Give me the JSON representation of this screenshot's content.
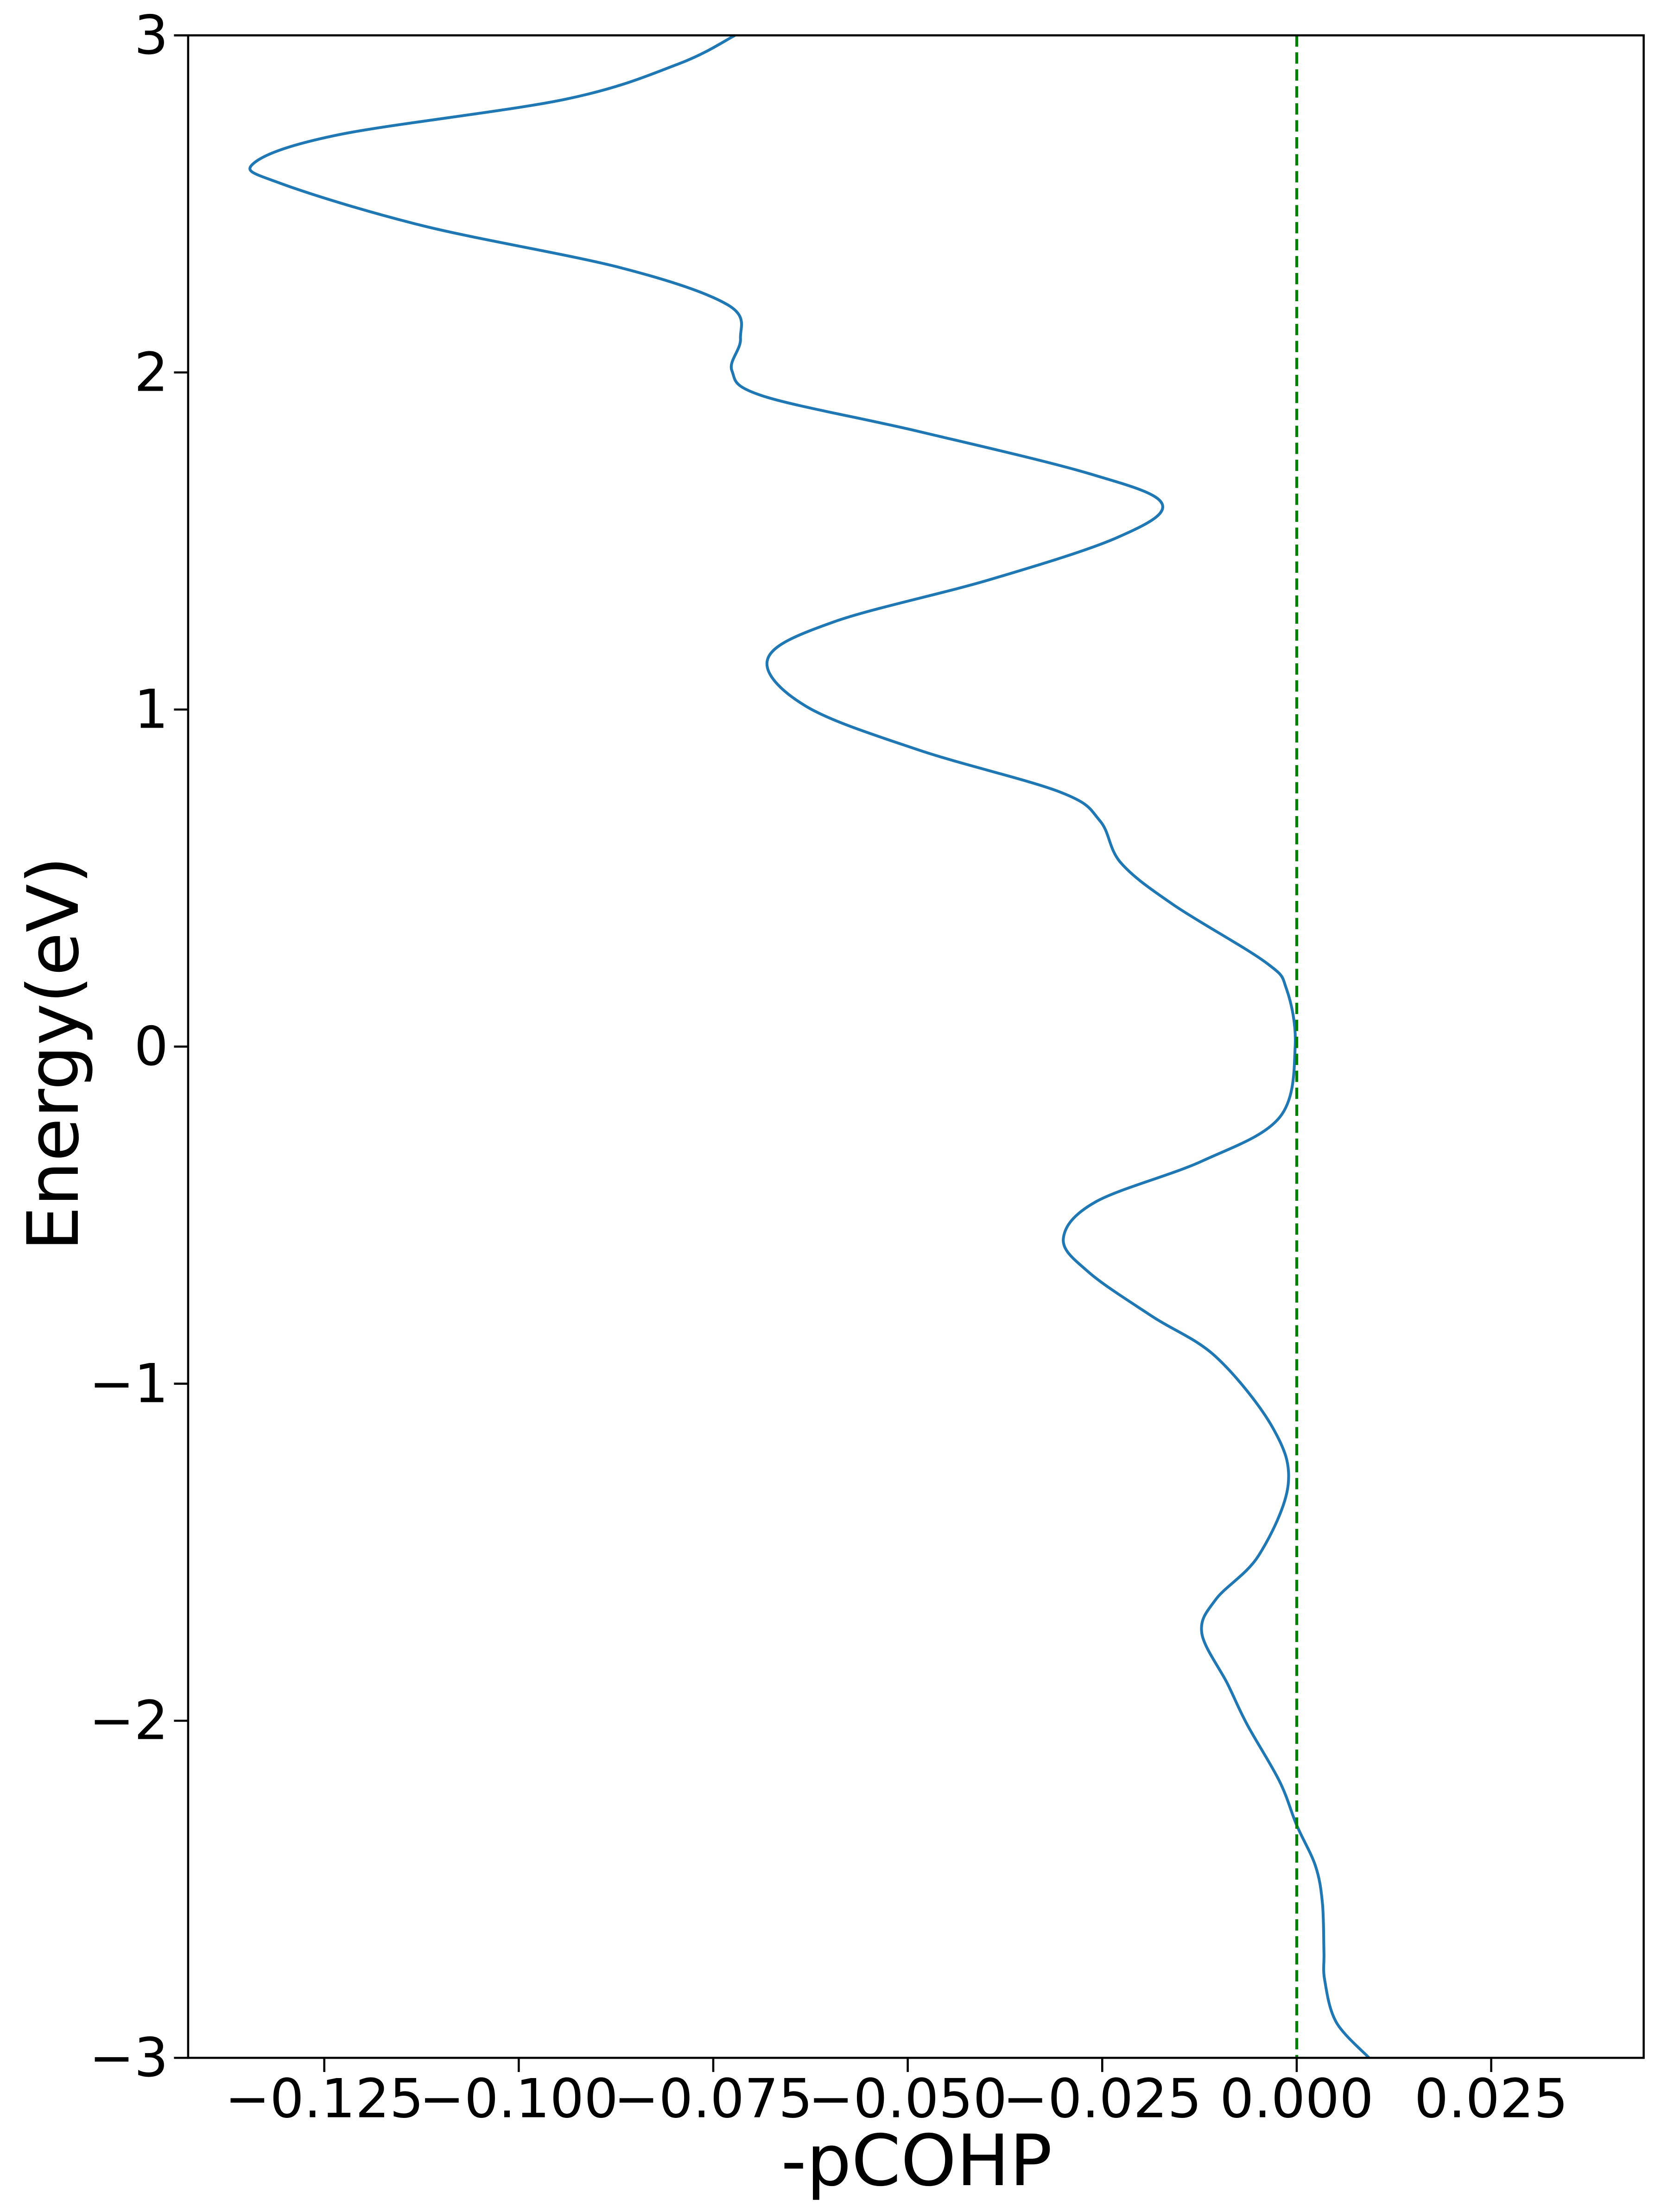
{
  "chart_data": {
    "type": "line",
    "x_label": "-pCOHP",
    "y_label": "Energy(eV)",
    "color": "#1f77b4",
    "y": [
      -3,
      -2.895,
      -2.77,
      -2.685,
      -2.54,
      -2.43,
      -2.31,
      -2.18,
      -2.01,
      -1.89,
      -1.74,
      -1.64,
      -1.51,
      -1.3,
      -1.13,
      -0.92,
      -0.8,
      -0.67,
      -0.57,
      -0.46,
      -0.34,
      -0.21,
      0,
      0.17,
      0.25,
      0.42,
      0.545,
      0.67,
      0.755,
      0.88,
      1.01,
      1.15,
      1.26,
      1.385,
      1.51,
      1.61,
      1.7,
      1.825,
      1.93,
      2.005,
      2.1,
      2.2,
      2.31,
      2.435,
      2.56,
      2.62,
      2.705,
      2.81,
      2.915,
      3
    ],
    "values": [
      0.0093,
      0.0051,
      0.0036,
      0.0035,
      0.0033,
      0.0024,
      0,
      -0.0022,
      -0.0064,
      -0.0089,
      -0.0122,
      -0.0104,
      -0.0049,
      -0.0011,
      -0.0031,
      -0.0104,
      -0.0186,
      -0.0267,
      -0.03,
      -0.0258,
      -0.0122,
      -0.0022,
      -0.0002,
      -0.0013,
      -0.004,
      -0.0158,
      -0.0226,
      -0.0253,
      -0.0304,
      -0.0486,
      -0.0631,
      -0.068,
      -0.0595,
      -0.0395,
      -0.0231,
      -0.0173,
      -0.0267,
      -0.0486,
      -0.0686,
      -0.0726,
      -0.0715,
      -0.0731,
      -0.0868,
      -0.1123,
      -0.1305,
      -0.1341,
      -0.1232,
      -0.0941,
      -0.0795,
      -0.0722
    ],
    "vline": {
      "x": 0,
      "color": "#008000"
    },
    "xlim": [
      -0.1425,
      0.0446
    ],
    "ylim": [
      -3,
      3
    ],
    "xticks": [
      {
        "value": -0.125,
        "label": "−0.125"
      },
      {
        "value": -0.1,
        "label": "−0.100"
      },
      {
        "value": -0.075,
        "label": "−0.075"
      },
      {
        "value": -0.05,
        "label": "−0.050"
      },
      {
        "value": -0.025,
        "label": "−0.025"
      },
      {
        "value": 0,
        "label": "0.000"
      },
      {
        "value": 0.025,
        "label": "0.025"
      }
    ],
    "yticks": [
      {
        "value": -3,
        "label": "−3"
      },
      {
        "value": -2,
        "label": "−2"
      },
      {
        "value": -1,
        "label": "−1"
      },
      0,
      1,
      2,
      3
    ]
  }
}
